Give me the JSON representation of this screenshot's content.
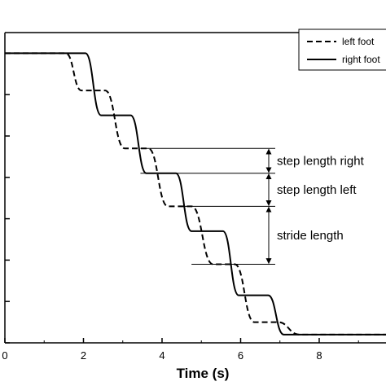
{
  "chart_data": {
    "type": "line",
    "xlabel": "Time (s)",
    "x_ticks": [
      "0",
      "2",
      "4",
      "6",
      "8"
    ],
    "xlim": [
      0,
      9.7
    ],
    "ylim": [
      0,
      7.5
    ],
    "grid": false,
    "legend_position": "top-right",
    "series": [
      {
        "name": "left foot",
        "style": "dashed",
        "color": "#000000",
        "x": [
          0,
          1.55,
          1.95,
          2.55,
          3.05,
          3.65,
          4.15,
          4.75,
          5.3,
          5.85,
          6.35,
          6.95,
          7.5,
          9.7
        ],
        "y": [
          7.0,
          7.0,
          6.1,
          6.1,
          4.7,
          4.7,
          3.3,
          3.3,
          1.9,
          1.9,
          0.5,
          0.5,
          0.2,
          0.2
        ]
      },
      {
        "name": "right foot",
        "style": "solid",
        "color": "#000000",
        "x": [
          0,
          2.05,
          2.45,
          3.2,
          3.6,
          4.35,
          4.75,
          5.55,
          5.95,
          6.7,
          7.1,
          9.7
        ],
        "y": [
          7.0,
          7.0,
          5.5,
          5.5,
          4.1,
          4.1,
          2.7,
          2.7,
          1.15,
          1.15,
          0.2,
          0.2
        ]
      }
    ],
    "annotations": [
      {
        "label": "step length right",
        "y_top": 4.7,
        "y_bottom": 4.1,
        "x_from": 3.45
      },
      {
        "label": "step length left",
        "y_top": 4.1,
        "y_bottom": 3.3,
        "x_from": 4.45
      },
      {
        "label": "stride length",
        "y_top": 3.3,
        "y_bottom": 1.9,
        "x_from": 4.75
      }
    ]
  }
}
